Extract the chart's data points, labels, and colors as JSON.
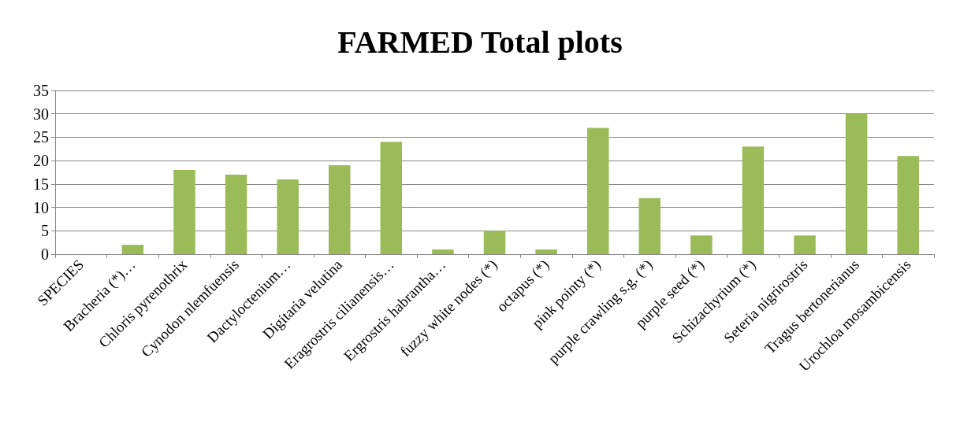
{
  "chart_data": {
    "type": "bar",
    "title": "FARMED Total plots",
    "categories": [
      "SPECIES",
      "Bracheria (*)…",
      "Chloris pyrenothrix",
      "Cynodon nlemfuensis",
      "Dactyloctenium…",
      "Digitaria velutina",
      "Eragrostris cilianensis…",
      "Ergrostris habrantha…",
      "fuzzy white nodes (*)",
      "octapus (*)",
      "pink pointy (*)",
      "purple crawling s.g. (*)",
      "purple seed (*)",
      "Schizachyrium (*)",
      "Seteria nigrirostris",
      "Tragus bertonerianus",
      "Urochloa mosambicensis"
    ],
    "values": [
      null,
      2,
      18,
      17,
      16,
      19,
      24,
      1,
      5,
      1,
      27,
      12,
      4,
      23,
      4,
      30,
      21
    ],
    "color": "#9bbb59",
    "ylim": [
      0,
      35
    ],
    "yticks": [
      0,
      5,
      10,
      15,
      20,
      25,
      30,
      35
    ],
    "grid": "y"
  }
}
